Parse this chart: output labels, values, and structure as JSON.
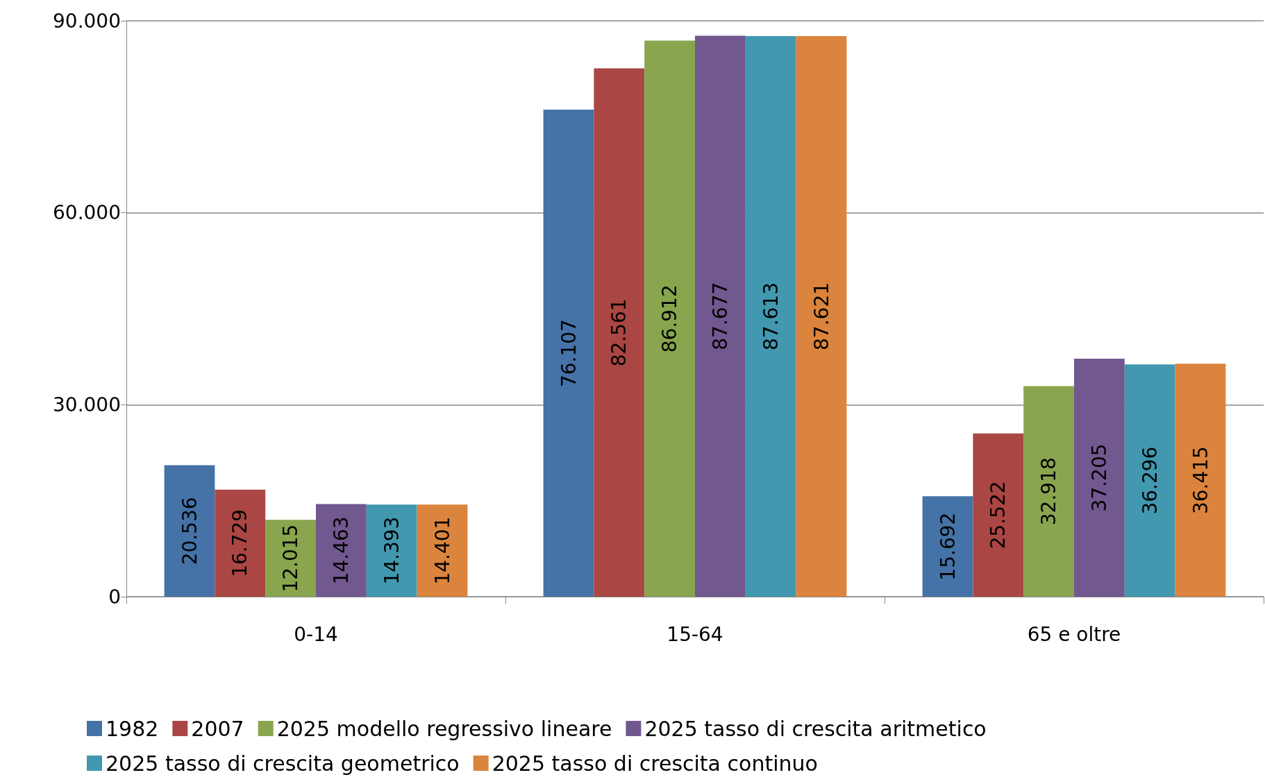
{
  "chart_data": {
    "type": "bar",
    "categories": [
      "0-14",
      "15-64",
      "65 e oltre"
    ],
    "series": [
      {
        "name": "1982",
        "color": "#4572a7",
        "values": [
          20536,
          76107,
          15692
        ],
        "value_labels": [
          "20.536",
          "76.107",
          "15.692"
        ]
      },
      {
        "name": "2007",
        "color": "#aa4643",
        "values": [
          16729,
          82561,
          25522
        ],
        "value_labels": [
          "16.729",
          "82.561",
          "25.522"
        ]
      },
      {
        "name": "2025 modello regressivo lineare",
        "color": "#89a54e",
        "values": [
          12015,
          86912,
          32918
        ],
        "value_labels": [
          "12.015",
          "86.912",
          "32.918"
        ]
      },
      {
        "name": "2025 tasso di crescita aritmetico",
        "color": "#71588f",
        "values": [
          14463,
          87677,
          37205
        ],
        "value_labels": [
          "14.463",
          "87.677",
          "37.205"
        ]
      },
      {
        "name": "2025 tasso di crescita geometrico",
        "color": "#4198af",
        "values": [
          14393,
          87613,
          36296
        ],
        "value_labels": [
          "14.393",
          "87.613",
          "36.296"
        ]
      },
      {
        "name": "2025 tasso di crescita continuo",
        "color": "#db843d",
        "values": [
          14401,
          87621,
          36415
        ],
        "value_labels": [
          "14.401",
          "87.621",
          "36.415"
        ]
      }
    ],
    "ylim": [
      0,
      90000
    ],
    "yticks": [
      {
        "value": 0,
        "label": "0"
      },
      {
        "value": 30000,
        "label": "30.000"
      },
      {
        "value": 60000,
        "label": "60.000"
      },
      {
        "value": 90000,
        "label": "90.000"
      }
    ],
    "grid": "y",
    "legend": "bottom"
  }
}
